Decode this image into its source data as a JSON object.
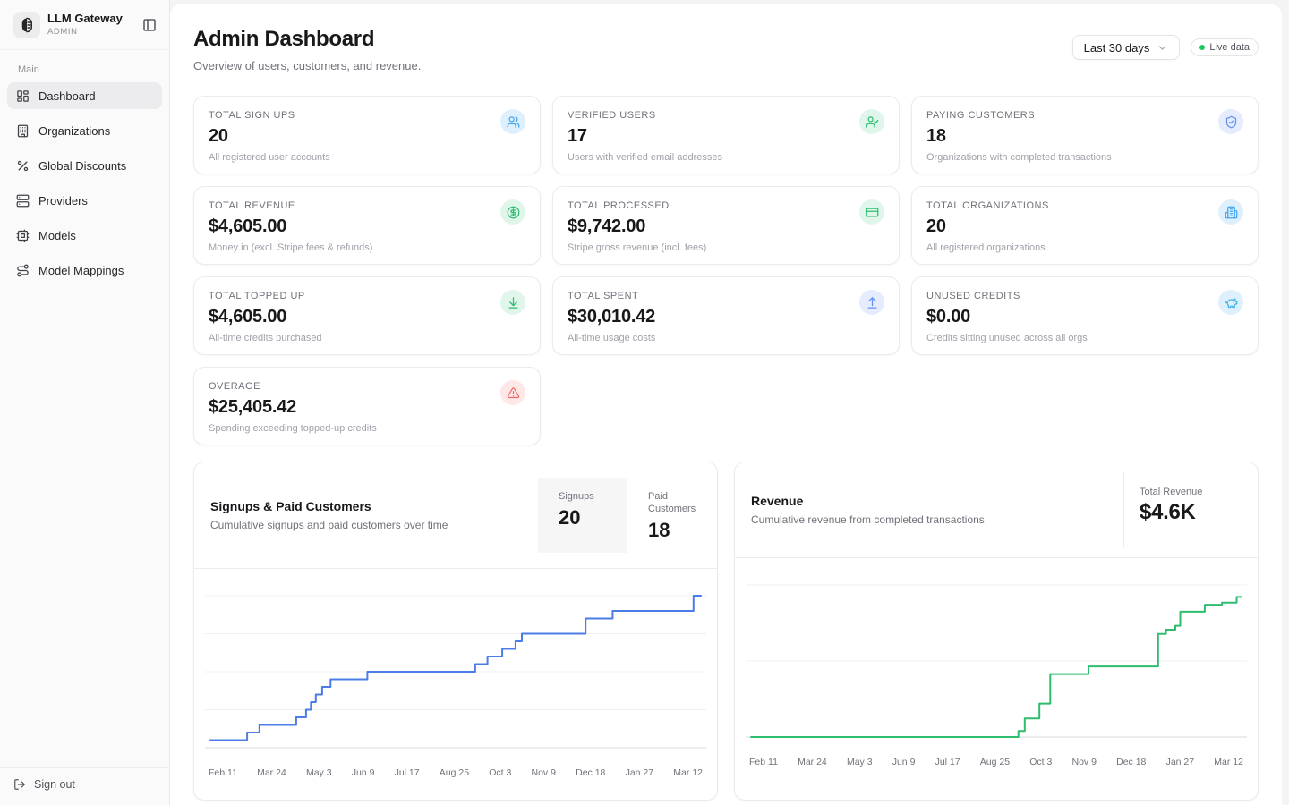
{
  "app": {
    "name": "LLM Gateway",
    "role": "ADMIN"
  },
  "sidebar": {
    "section_label": "Main",
    "items": [
      {
        "label": "Dashboard",
        "icon": "dashboard-icon",
        "active": true
      },
      {
        "label": "Organizations",
        "icon": "building-icon",
        "active": false
      },
      {
        "label": "Global Discounts",
        "icon": "percent-icon",
        "active": false
      },
      {
        "label": "Providers",
        "icon": "server-icon",
        "active": false
      },
      {
        "label": "Models",
        "icon": "cpu-icon",
        "active": false
      },
      {
        "label": "Model Mappings",
        "icon": "route-icon",
        "active": false
      }
    ],
    "sign_out_label": "Sign out"
  },
  "header": {
    "title": "Admin Dashboard",
    "subtitle": "Overview of users, customers, and revenue.",
    "range_selector": "Last 30 days",
    "live_badge": "Live data"
  },
  "stats": [
    {
      "label": "TOTAL SIGN UPS",
      "value": "20",
      "description": "All registered user accounts",
      "icon": "users-icon",
      "tone": "blue"
    },
    {
      "label": "VERIFIED USERS",
      "value": "17",
      "description": "Users with verified email addresses",
      "icon": "user-check-icon",
      "tone": "green"
    },
    {
      "label": "PAYING CUSTOMERS",
      "value": "18",
      "description": "Organizations with completed transactions",
      "icon": "shield-check-icon",
      "tone": "indigo"
    },
    {
      "label": "TOTAL REVENUE",
      "value": "$4,605.00",
      "description": "Money in (excl. Stripe fees & refunds)",
      "icon": "circle-dollar-icon",
      "tone": "green"
    },
    {
      "label": "TOTAL PROCESSED",
      "value": "$9,742.00",
      "description": "Stripe gross revenue (incl. fees)",
      "icon": "credit-card-icon",
      "tone": "green"
    },
    {
      "label": "TOTAL ORGANIZATIONS",
      "value": "20",
      "description": "All registered organizations",
      "icon": "building2-icon",
      "tone": "blue"
    },
    {
      "label": "TOTAL TOPPED UP",
      "value": "$4,605.00",
      "description": "All-time credits purchased",
      "icon": "download-icon",
      "tone": "green"
    },
    {
      "label": "TOTAL SPENT",
      "value": "$30,010.42",
      "description": "All-time usage costs",
      "icon": "upload-icon",
      "tone": "indigo"
    },
    {
      "label": "UNUSED CREDITS",
      "value": "$0.00",
      "description": "Credits sitting unused across all orgs",
      "icon": "piggy-bank-icon",
      "tone": "cyan"
    },
    {
      "label": "OVERAGE",
      "value": "$25,405.42",
      "description": "Spending exceeding topped-up credits",
      "icon": "alert-triangle-icon",
      "tone": "red"
    }
  ],
  "chart_data": [
    {
      "type": "line",
      "line_style": "step-after",
      "title": "Signups & Paid Customers",
      "subtitle": "Cumulative signups and paid customers over time",
      "legend": [
        {
          "label": "Signups",
          "value": "20",
          "selected": true
        },
        {
          "label": "Paid Customers",
          "value": "18",
          "selected": false
        }
      ],
      "x_tick_labels": [
        "Feb 11",
        "Mar 24",
        "May 3",
        "Jun 9",
        "Jul 17",
        "Aug 25",
        "Oct 3",
        "Nov 9",
        "Dec 18",
        "Jan 27",
        "Mar 12"
      ],
      "ylim": [
        0,
        20
      ],
      "grid": "horizontal",
      "legend_position": "header-right",
      "line_color": "#4b7ce8",
      "series": [
        {
          "name": "Signups",
          "points": [
            [
              0,
              1
            ],
            [
              0.075,
              2
            ],
            [
              0.1,
              3
            ],
            [
              0.175,
              4
            ],
            [
              0.195,
              5
            ],
            [
              0.205,
              6
            ],
            [
              0.215,
              7
            ],
            [
              0.228,
              8
            ],
            [
              0.245,
              9
            ],
            [
              0.32,
              10
            ],
            [
              0.54,
              11
            ],
            [
              0.565,
              12
            ],
            [
              0.595,
              13
            ],
            [
              0.622,
              14
            ],
            [
              0.635,
              15
            ],
            [
              0.765,
              17
            ],
            [
              0.82,
              18
            ],
            [
              0.985,
              20
            ],
            [
              1,
              20
            ]
          ]
        }
      ]
    },
    {
      "type": "line",
      "line_style": "step-after",
      "title": "Revenue",
      "subtitle": "Cumulative revenue from completed transactions",
      "total_label": "Total Revenue",
      "total_value": "$4.6K",
      "x_tick_labels": [
        "Feb 11",
        "Mar 24",
        "May 3",
        "Jun 9",
        "Jul 17",
        "Aug 25",
        "Oct 3",
        "Nov 9",
        "Dec 18",
        "Jan 27",
        "Mar 12"
      ],
      "ylim": [
        0,
        5000
      ],
      "grid": "horizontal",
      "line_color": "#2ebd6e",
      "series": [
        {
          "name": "Revenue",
          "points": [
            [
              0,
              0
            ],
            [
              0.545,
              200
            ],
            [
              0.558,
              610
            ],
            [
              0.588,
              1100
            ],
            [
              0.61,
              2070
            ],
            [
              0.688,
              2320
            ],
            [
              0.83,
              3390
            ],
            [
              0.846,
              3530
            ],
            [
              0.865,
              3660
            ],
            [
              0.875,
              4120
            ],
            [
              0.925,
              4350
            ],
            [
              0.96,
              4420
            ],
            [
              0.99,
              4605
            ],
            [
              1,
              4605
            ]
          ]
        }
      ]
    }
  ]
}
